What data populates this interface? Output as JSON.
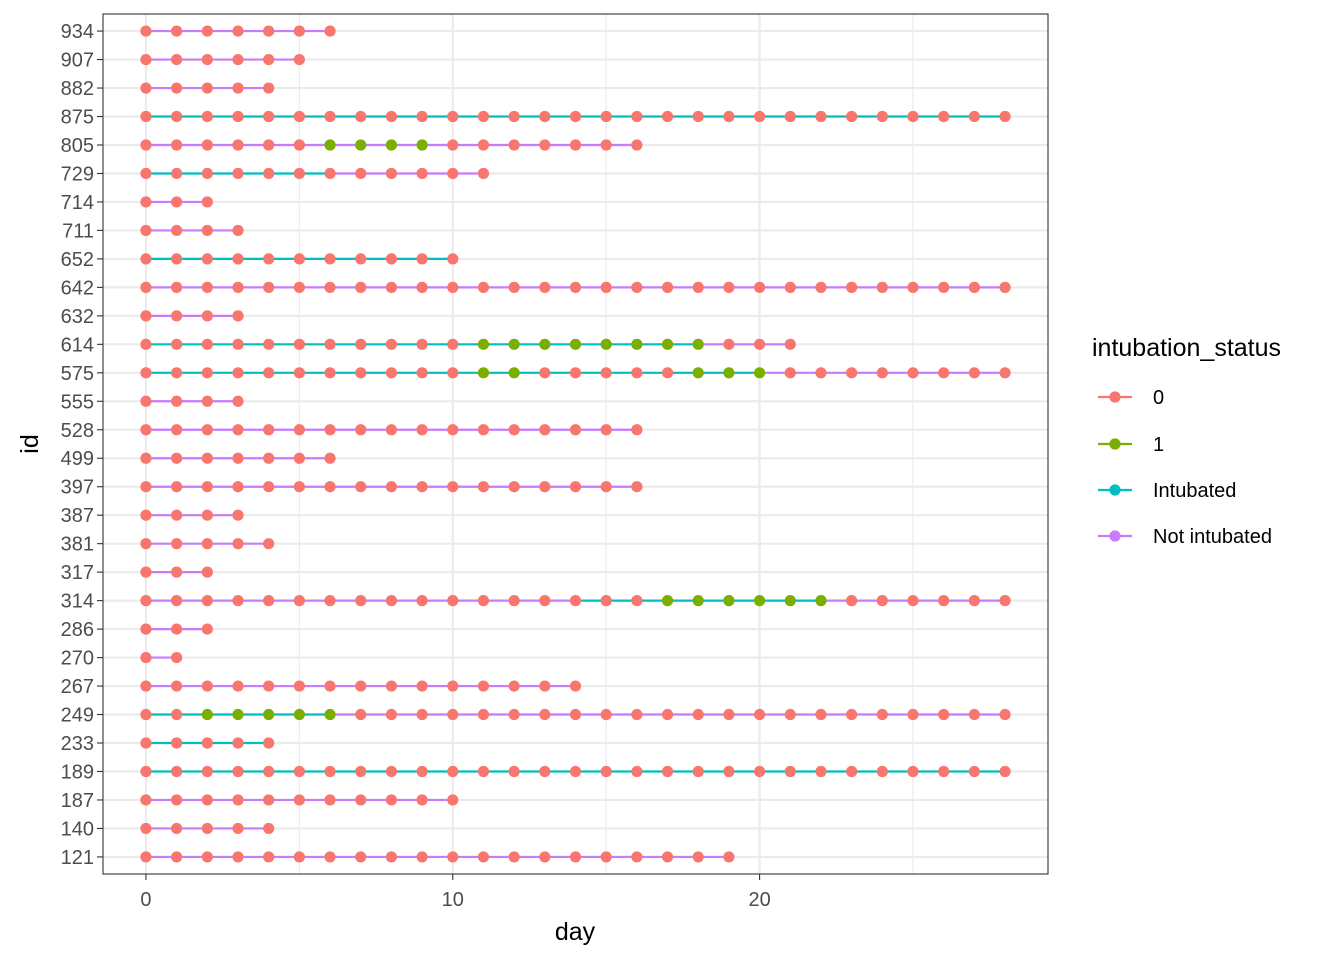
{
  "chart_data": {
    "type": "scatter",
    "title": "",
    "xlabel": "day",
    "ylabel": "id",
    "xlim": [
      -1.4,
      29.4
    ],
    "x_ticks": [
      0,
      10,
      20
    ],
    "grid": true,
    "legend": {
      "title": "intubation_status",
      "placement": "right",
      "entries": [
        {
          "label": "0",
          "color": "#F8766D"
        },
        {
          "label": "1",
          "color": "#7CAE00"
        },
        {
          "label": "Intubated",
          "color": "#00BFC4"
        },
        {
          "label": "Not intubated",
          "color": "#C77CFF"
        }
      ]
    },
    "categories": [
      "121",
      "140",
      "187",
      "189",
      "233",
      "249",
      "267",
      "270",
      "286",
      "314",
      "317",
      "381",
      "387",
      "397",
      "499",
      "528",
      "555",
      "575",
      "614",
      "632",
      "642",
      "652",
      "711",
      "714",
      "729",
      "805",
      "875",
      "882",
      "907",
      "934"
    ],
    "patients": [
      {
        "id": "934",
        "last_day": 6,
        "intubated_days": [],
        "status1_days": []
      },
      {
        "id": "907",
        "last_day": 5,
        "intubated_days": [],
        "status1_days": []
      },
      {
        "id": "882",
        "last_day": 4,
        "intubated_days": [],
        "status1_days": []
      },
      {
        "id": "875",
        "last_day": 28,
        "intubated_days": [
          1,
          2,
          3,
          4,
          5,
          6,
          7,
          8,
          9,
          10,
          11,
          12,
          13,
          14,
          15,
          16,
          17,
          18,
          19,
          20,
          21,
          22,
          23,
          24,
          25,
          26,
          27,
          28
        ],
        "status1_days": []
      },
      {
        "id": "805",
        "last_day": 16,
        "intubated_days": [],
        "status1_days": [
          6,
          7,
          8,
          9
        ]
      },
      {
        "id": "729",
        "last_day": 11,
        "intubated_days": [
          1,
          2,
          3,
          4,
          5,
          6
        ],
        "status1_days": []
      },
      {
        "id": "714",
        "last_day": 2,
        "intubated_days": [],
        "status1_days": []
      },
      {
        "id": "711",
        "last_day": 3,
        "intubated_days": [],
        "status1_days": []
      },
      {
        "id": "652",
        "last_day": 10,
        "intubated_days": [
          0,
          1,
          2,
          3,
          4,
          5,
          6,
          7,
          8,
          9,
          10
        ],
        "status1_days": []
      },
      {
        "id": "642",
        "last_day": 28,
        "intubated_days": [],
        "status1_days": []
      },
      {
        "id": "632",
        "last_day": 3,
        "intubated_days": [],
        "status1_days": []
      },
      {
        "id": "614",
        "last_day": 21,
        "intubated_days": [
          0,
          1,
          2,
          3,
          4,
          5,
          6,
          7,
          8,
          9,
          10,
          11,
          12,
          13,
          14,
          15,
          16,
          17,
          18
        ],
        "status1_days": [
          11,
          12,
          13,
          14,
          15,
          16,
          17,
          18
        ]
      },
      {
        "id": "575",
        "last_day": 28,
        "intubated_days": [
          0,
          1,
          2,
          3,
          4,
          5,
          6,
          7,
          8,
          9,
          10,
          11,
          12,
          13,
          14,
          15,
          16,
          17,
          18,
          19,
          20
        ],
        "status1_days": [
          11,
          12,
          18,
          19,
          20
        ]
      },
      {
        "id": "555",
        "last_day": 3,
        "intubated_days": [],
        "status1_days": []
      },
      {
        "id": "528",
        "last_day": 16,
        "intubated_days": [],
        "status1_days": []
      },
      {
        "id": "499",
        "last_day": 6,
        "intubated_days": [],
        "status1_days": []
      },
      {
        "id": "397",
        "last_day": 16,
        "intubated_days": [],
        "status1_days": []
      },
      {
        "id": "387",
        "last_day": 3,
        "intubated_days": [],
        "status1_days": []
      },
      {
        "id": "381",
        "last_day": 4,
        "intubated_days": [],
        "status1_days": []
      },
      {
        "id": "317",
        "last_day": 2,
        "intubated_days": [],
        "status1_days": []
      },
      {
        "id": "314",
        "last_day": 28,
        "intubated_days": [
          15,
          16,
          17,
          18,
          19,
          20,
          21,
          22
        ],
        "status1_days": [
          17,
          18,
          19,
          20,
          21,
          22
        ]
      },
      {
        "id": "286",
        "last_day": 2,
        "intubated_days": [],
        "status1_days": []
      },
      {
        "id": "270",
        "last_day": 1,
        "intubated_days": [],
        "status1_days": []
      },
      {
        "id": "267",
        "last_day": 14,
        "intubated_days": [],
        "status1_days": []
      },
      {
        "id": "249",
        "last_day": 28,
        "intubated_days": [
          0,
          1,
          2,
          3,
          4,
          5,
          6
        ],
        "status1_days": [
          2,
          3,
          4,
          5,
          6
        ]
      },
      {
        "id": "233",
        "last_day": 4,
        "intubated_days": [
          0,
          1,
          2,
          3,
          4
        ],
        "status1_days": []
      },
      {
        "id": "189",
        "last_day": 28,
        "intubated_days": [
          1,
          2,
          3,
          4,
          5,
          6,
          7,
          8,
          9,
          10,
          11,
          12,
          13,
          14,
          15,
          16,
          17,
          18,
          19,
          20,
          21,
          22,
          23,
          24,
          25,
          26,
          27,
          28
        ],
        "status1_days": []
      },
      {
        "id": "187",
        "last_day": 10,
        "intubated_days": [],
        "status1_days": []
      },
      {
        "id": "140",
        "last_day": 4,
        "intubated_days": [],
        "status1_days": []
      },
      {
        "id": "121",
        "last_day": 19,
        "intubated_days": [],
        "status1_days": []
      }
    ]
  }
}
